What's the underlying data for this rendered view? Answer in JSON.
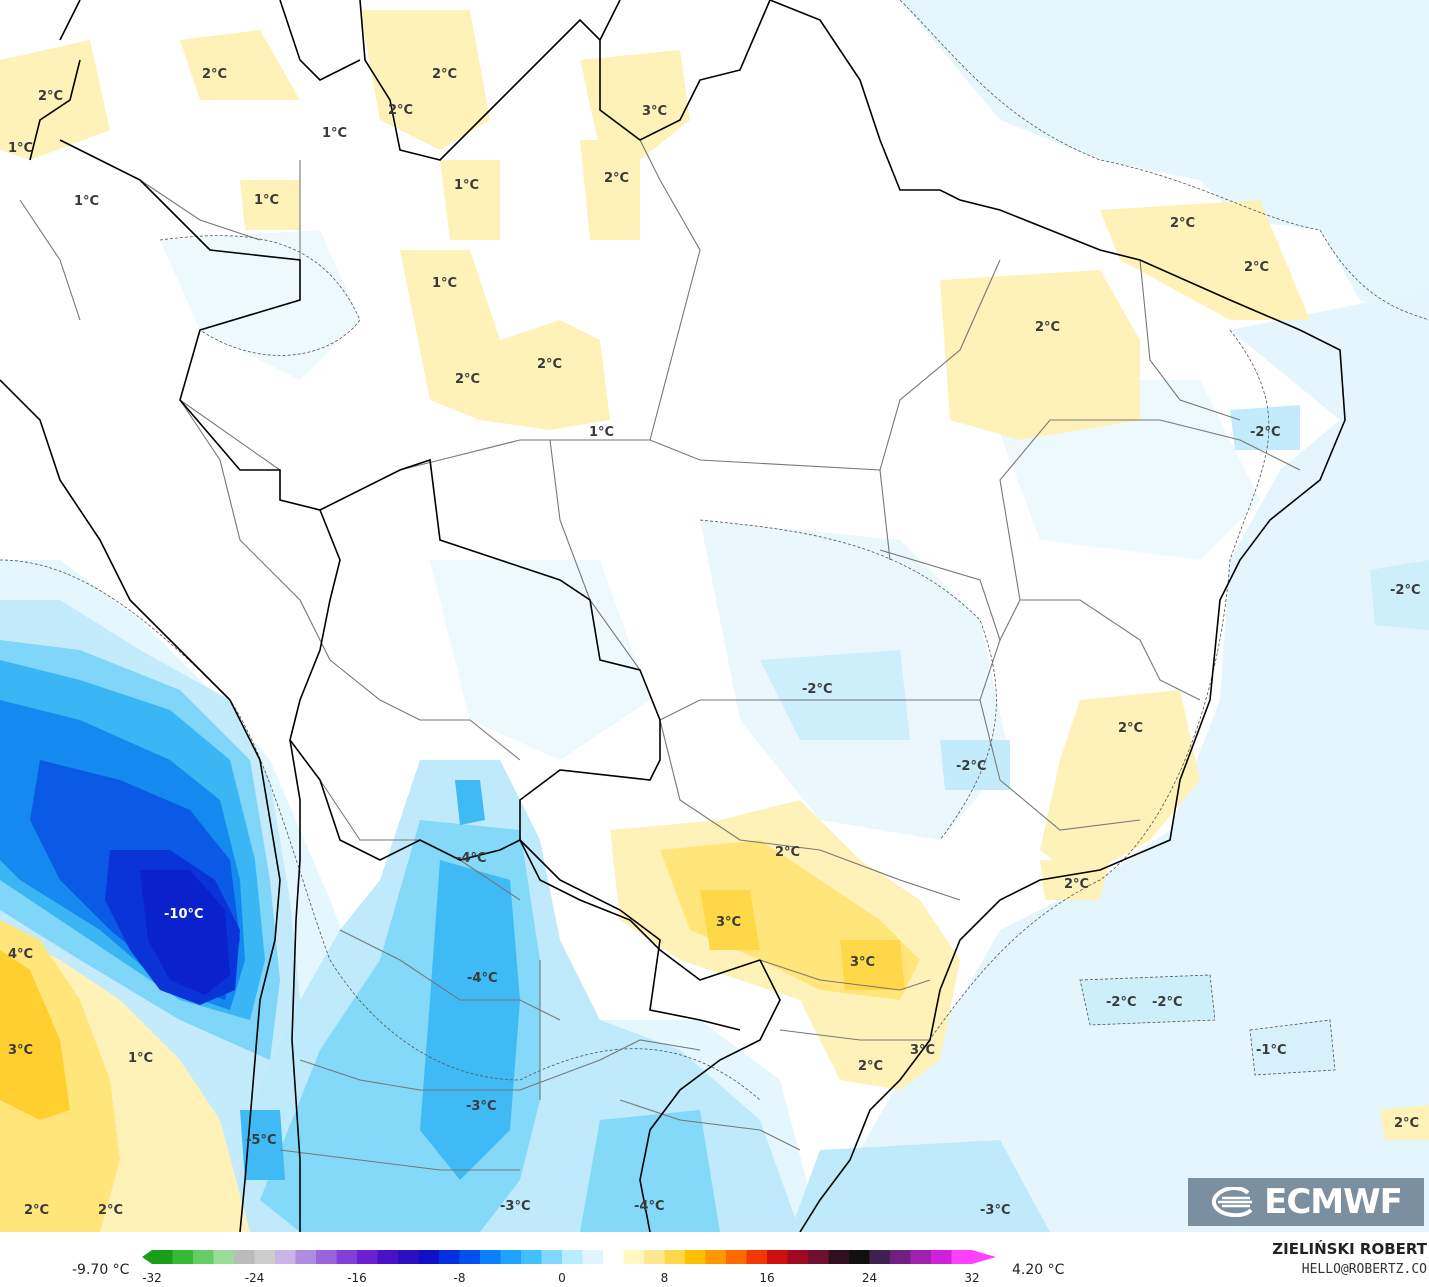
{
  "map": {
    "labels": [
      {
        "text": "2°C"
      },
      {
        "text": "2°C"
      },
      {
        "text": "1°C"
      },
      {
        "text": "2°C"
      },
      {
        "text": "2°C"
      },
      {
        "text": "1°C"
      },
      {
        "text": "3°C"
      },
      {
        "text": "1°C"
      },
      {
        "text": "1°C"
      },
      {
        "text": "1°C"
      },
      {
        "text": "2°C"
      },
      {
        "text": "1°C"
      },
      {
        "text": "2°C"
      },
      {
        "text": "2°C"
      },
      {
        "text": "1°C"
      },
      {
        "text": "2°C"
      },
      {
        "text": "2°C"
      },
      {
        "text": "2°C"
      },
      {
        "text": "-2°C"
      },
      {
        "text": "-2°C"
      },
      {
        "text": "-2°C"
      },
      {
        "text": "2°C"
      },
      {
        "text": "-2°C"
      },
      {
        "text": "2°C"
      },
      {
        "text": "2°C"
      },
      {
        "text": "3°C"
      },
      {
        "text": "3°C"
      },
      {
        "text": "-4°C"
      },
      {
        "text": "-10°C"
      },
      {
        "text": "4°C"
      },
      {
        "text": "-4°C"
      },
      {
        "text": "3°C"
      },
      {
        "text": "1°C"
      },
      {
        "text": "-2°C"
      },
      {
        "text": "-2°C"
      },
      {
        "text": "2°C"
      },
      {
        "text": "3°C"
      },
      {
        "text": "-1°C"
      },
      {
        "text": "-3°C"
      },
      {
        "text": "-5°C"
      },
      {
        "text": "2°C"
      },
      {
        "text": "2°C"
      },
      {
        "text": "-3°C"
      },
      {
        "text": "-4°C"
      },
      {
        "text": "-3°C"
      },
      {
        "text": "2°C"
      }
    ]
  },
  "logo": {
    "text": "ECMWF"
  },
  "legend": {
    "min_label": "-9.70 °C",
    "max_label": "4.20 °C",
    "ticks": [
      "-32",
      "-24",
      "-16",
      "-8",
      "0",
      "8",
      "16",
      "24",
      "32"
    ],
    "range": [
      -32,
      32
    ],
    "colors": [
      "#1a9e1a",
      "#33bb33",
      "#66cc66",
      "#99dd99",
      "#bbbbbb",
      "#cccccc",
      "#c8b4e6",
      "#b08ce0",
      "#9a64dc",
      "#8040d8",
      "#6a1fd0",
      "#4a10c8",
      "#2a10c0",
      "#1010c8",
      "#0030e0",
      "#0050f0",
      "#0a80ff",
      "#20a0ff",
      "#40c0ff",
      "#80d8ff",
      "#b8ecff",
      "#e0f6ff",
      "#ffffff",
      "#fff6c0",
      "#ffe890",
      "#ffd84a",
      "#ffc000",
      "#ff9800",
      "#ff6a00",
      "#f03800",
      "#d01010",
      "#a00a20",
      "#701030",
      "#301020",
      "#101010",
      "#402050",
      "#702080",
      "#a020b0",
      "#d020d8",
      "#ff40ff"
    ],
    "colors_note": ""
  },
  "credit": {
    "name": "ZIELIŃSKI ROBERT",
    "email": "HELLO@ROBERTZ.CO"
  }
}
